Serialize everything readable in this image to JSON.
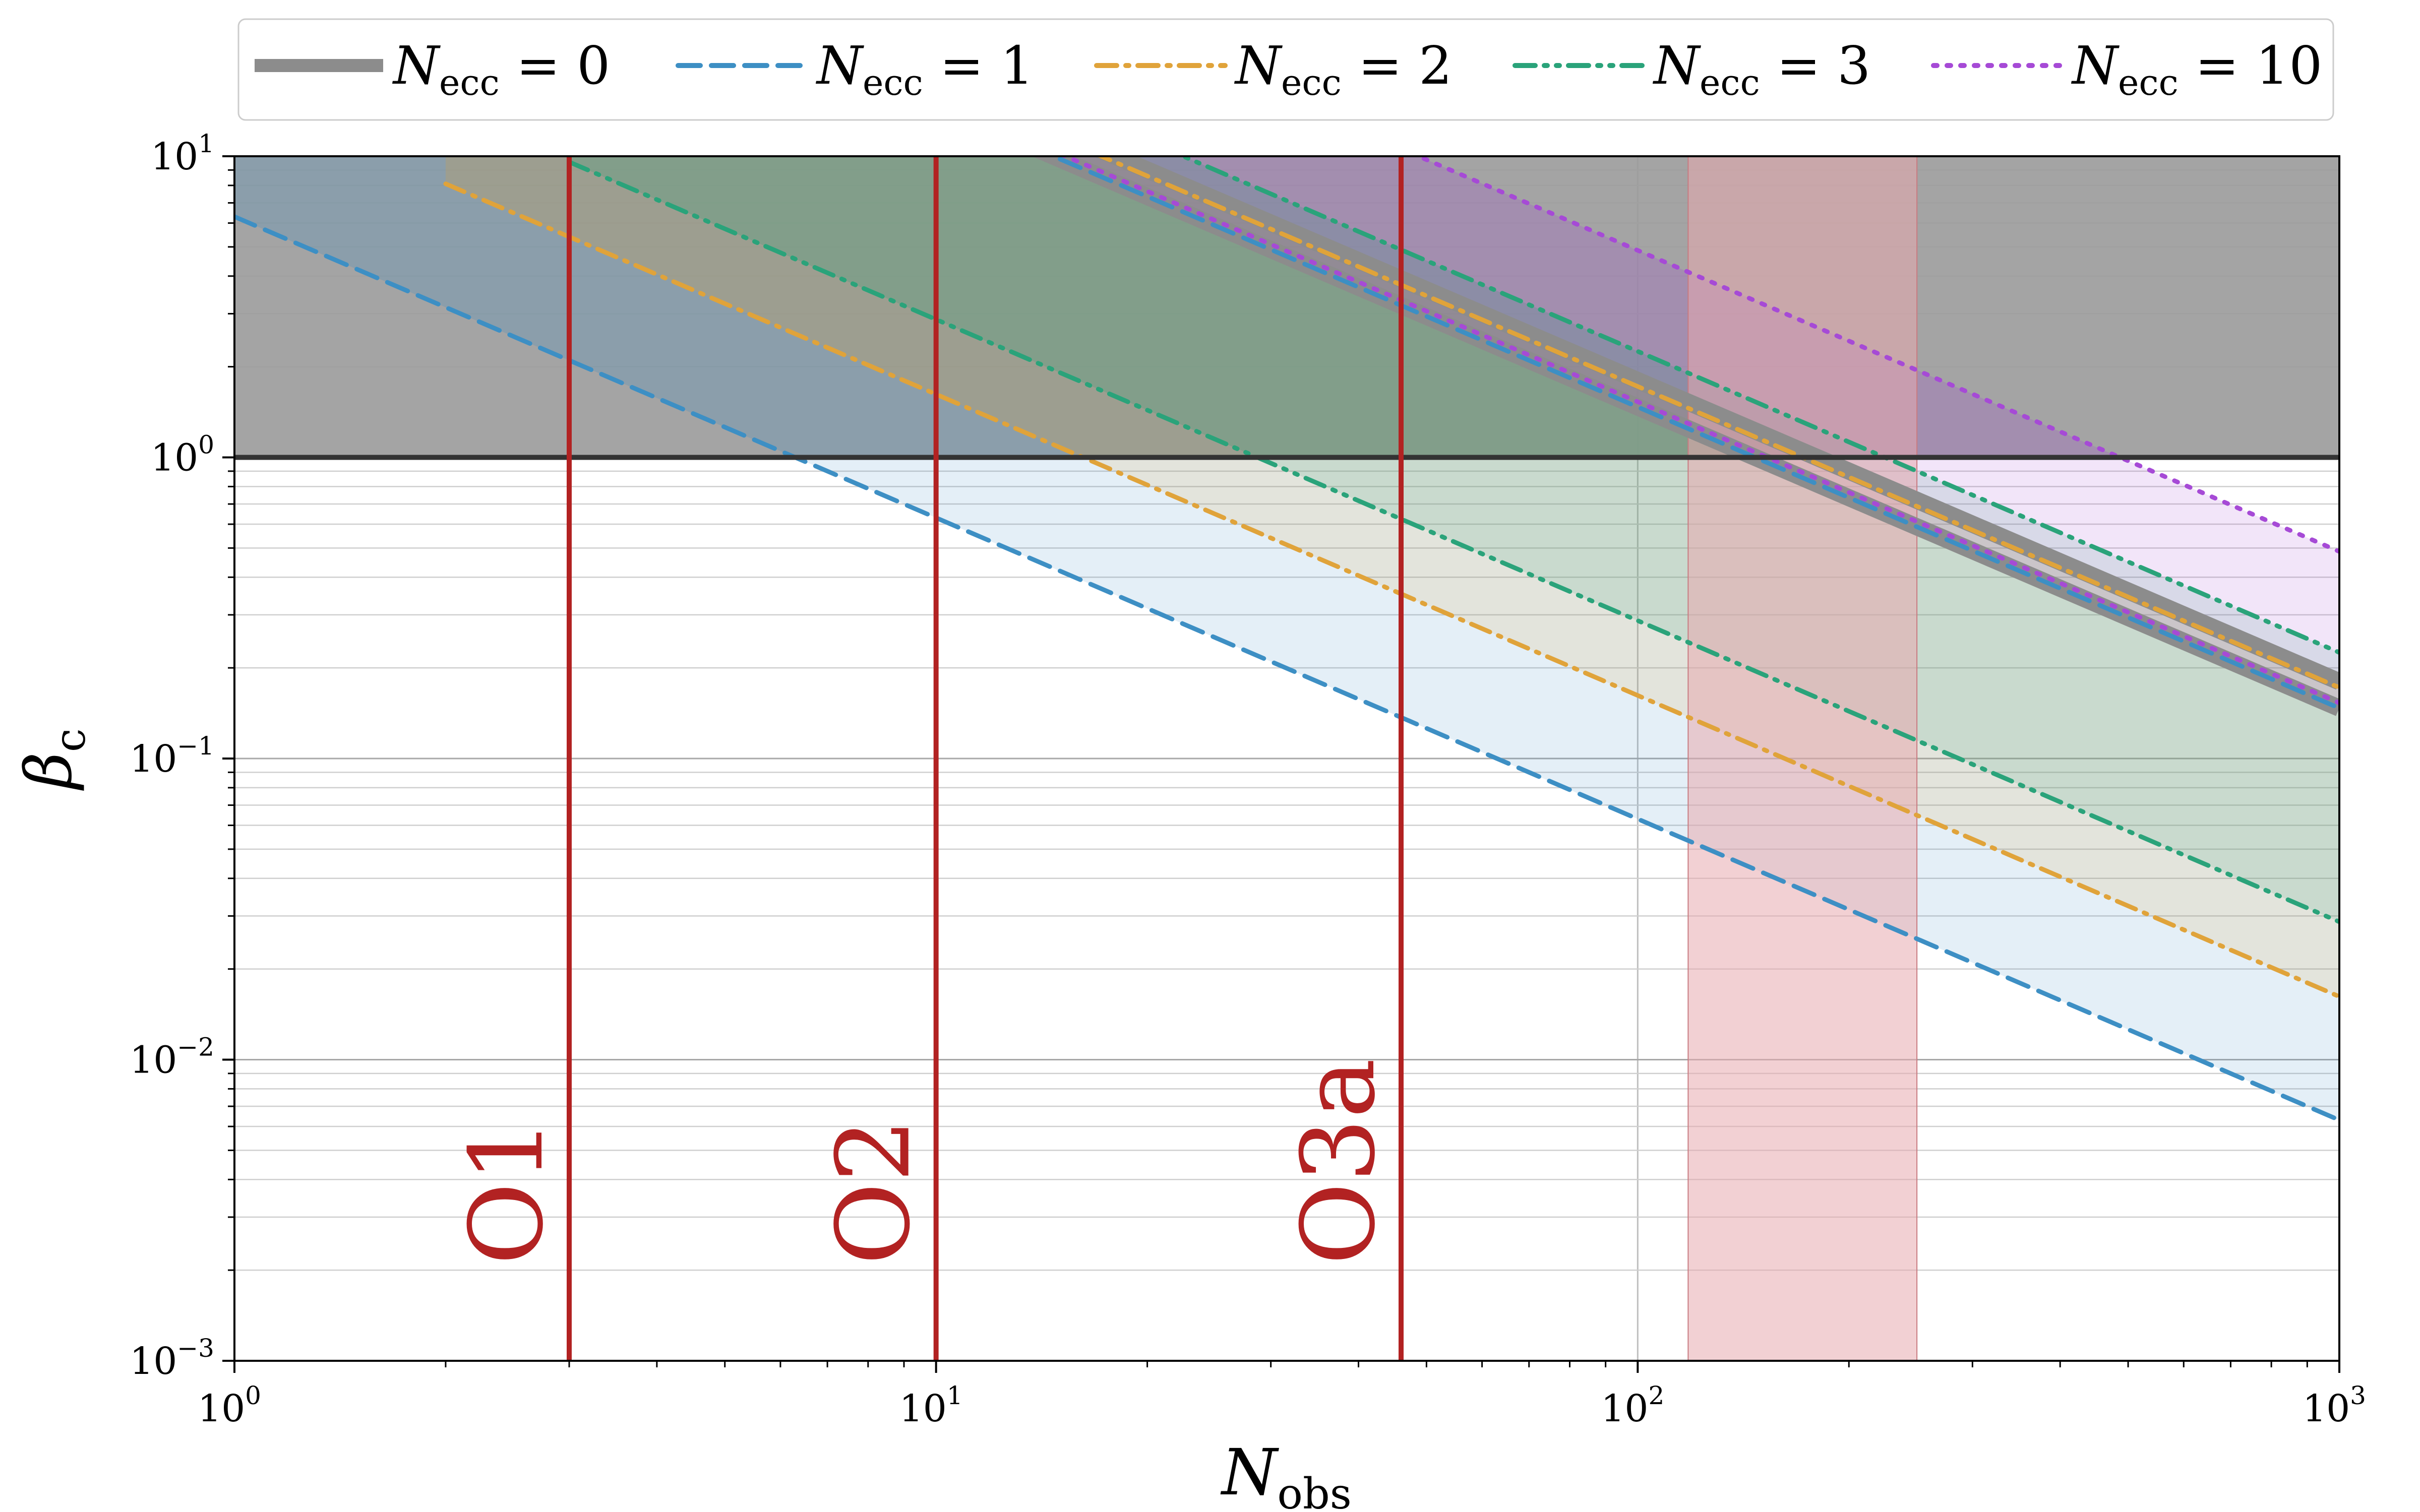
{
  "chart_data": {
    "type": "line",
    "xscale": "log",
    "yscale": "log",
    "xlim": [
      1,
      1000
    ],
    "ylim": [
      0.001,
      10
    ],
    "xlabel": {
      "symbol": "N",
      "sub": "obs"
    },
    "ylabel": {
      "symbol": "β",
      "sub": "c"
    },
    "xticks": [
      {
        "value": 1,
        "base": "10",
        "exp": "0"
      },
      {
        "value": 10,
        "base": "10",
        "exp": "1"
      },
      {
        "value": 100,
        "base": "10",
        "exp": "2"
      },
      {
        "value": 1000,
        "base": "10",
        "exp": "3"
      }
    ],
    "yticks": [
      {
        "value": 0.001,
        "base": "10",
        "exp": "−3"
      },
      {
        "value": 0.01,
        "base": "10",
        "exp": "−2"
      },
      {
        "value": 0.1,
        "base": "10",
        "exp": "−1"
      },
      {
        "value": 1,
        "base": "10",
        "exp": "0"
      },
      {
        "value": 10,
        "base": "10",
        "exp": "1"
      }
    ],
    "grid": true,
    "legend_position": "top",
    "threshold": {
      "y": 1,
      "color": "#333333",
      "region": "above",
      "region_color": "#9a9a9a"
    },
    "observing_runs": [
      {
        "label": "O1",
        "x": 3
      },
      {
        "label": "O2",
        "x": 10
      },
      {
        "label": "O3a",
        "x": 46
      }
    ],
    "run_color": "#b22222",
    "band": {
      "x_start": 118,
      "x_end": 250,
      "color": "#e8a9ae"
    },
    "series": [
      {
        "name": "N_ecc = 0",
        "label_main": "N",
        "label_sub": "ecc",
        "label_eq": " = 0",
        "color": "#8c8c8c",
        "dash": "solid",
        "lower": {
          "x": [
            1,
            1000
          ],
          "y": [
            147,
            0.147
          ]
        },
        "upper": {
          "x": [
            1,
            1000
          ],
          "y": [
            180,
            0.18
          ]
        }
      },
      {
        "name": "N_ecc = 1",
        "label_main": "N",
        "label_sub": "ecc",
        "label_eq": " = 1",
        "color": "#3d8fc4",
        "dash": "dashed",
        "lower": {
          "x": [
            1,
            1000
          ],
          "y": [
            6.3,
            0.0063
          ]
        },
        "upper": {
          "x": [
            1,
            1000
          ],
          "y": [
            147,
            0.147
          ]
        }
      },
      {
        "name": "N_ecc = 2",
        "label_main": "N",
        "label_sub": "ecc",
        "label_eq": " = 2",
        "color": "#e0a33a",
        "dash": "dashdot",
        "lower": {
          "x": [
            2,
            1000
          ],
          "y": [
            8.1,
            0.0162
          ]
        },
        "upper": {
          "x": [
            2,
            1000
          ],
          "y": [
            86,
            0.172
          ]
        }
      },
      {
        "name": "N_ecc = 3",
        "label_main": "N",
        "label_sub": "ecc",
        "label_eq": " = 3",
        "color": "#2aa37a",
        "dash": "dashdotdot",
        "lower": {
          "x": [
            3,
            1000
          ],
          "y": [
            9.57,
            0.0287
          ]
        },
        "upper": {
          "x": [
            3,
            1000
          ],
          "y": [
            75,
            0.225
          ]
        }
      },
      {
        "name": "N_ecc = 10",
        "label_main": "N",
        "label_sub": "ecc",
        "label_eq": " = 10",
        "color": "#a64ad6",
        "dash": "dotted",
        "lower": {
          "x": [
            10,
            1000
          ],
          "y": [
            15.3,
            0.153
          ]
        },
        "upper": {
          "x": [
            10,
            1000
          ],
          "y": [
            48.7,
            0.487
          ]
        }
      }
    ]
  }
}
